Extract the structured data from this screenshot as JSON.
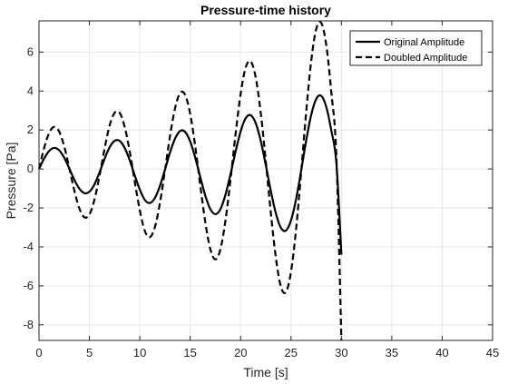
{
  "chart_data": {
    "type": "line",
    "title": "Pressure-time history",
    "xlabel": "Time [s]",
    "ylabel": "Pressure [Pa]",
    "xlim": [
      0,
      45
    ],
    "ylim": [
      -8.8,
      7.6
    ],
    "xticks": [
      0,
      5,
      10,
      15,
      20,
      25,
      30,
      35,
      40,
      45
    ],
    "yticks": [
      -8,
      -6,
      -4,
      -2,
      0,
      2,
      4,
      6
    ],
    "grid": true,
    "legend_position": "top-right",
    "series": [
      {
        "name": "Original Amplitude",
        "style": "solid",
        "color": "#000000",
        "x": [
          0,
          0.5,
          1,
          1.5,
          2,
          2.5,
          3,
          3.5,
          4,
          4.5,
          5,
          5.5,
          6,
          6.5,
          7,
          7.5,
          8,
          8.5,
          9,
          9.5,
          10,
          10.5,
          11,
          11.5,
          12,
          12.5,
          13,
          13.5,
          14,
          14.5,
          15,
          15.5,
          16,
          16.5,
          17,
          17.5,
          18,
          18.5,
          19,
          19.5,
          20,
          20.5,
          21,
          21.5,
          22,
          22.5,
          23,
          23.5,
          24,
          24.5,
          25,
          25.5,
          26,
          26.5,
          27,
          27.5,
          28,
          28.5,
          29,
          29.5,
          30
        ],
        "y": [
          0,
          0.53,
          0.92,
          1.08,
          0.96,
          0.58,
          0.03,
          -0.55,
          -1.01,
          -1.24,
          -1.17,
          -0.79,
          -0.18,
          0.51,
          1.11,
          1.44,
          1.44,
          1.08,
          0.45,
          -0.33,
          -1.06,
          -1.59,
          -1.75,
          -1.49,
          -0.87,
          -0.03,
          0.85,
          1.56,
          1.95,
          1.9,
          1.41,
          0.58,
          -0.42,
          -1.37,
          -2.06,
          -2.32,
          -2.06,
          -1.32,
          -0.27,
          0.89,
          1.92,
          2.6,
          2.76,
          2.35,
          1.44,
          0.2,
          -1.13,
          -2.28,
          -3.02,
          -3.16,
          -2.64,
          -1.56,
          -0.11,
          1.44,
          2.76,
          3.59,
          3.75,
          3.18,
          1.97,
          0.33,
          -4.4
        ]
      },
      {
        "name": "Doubled Amplitude",
        "style": "dashed",
        "color": "#000000",
        "x": [
          0,
          0.5,
          1,
          1.5,
          2,
          2.5,
          3,
          3.5,
          4,
          4.5,
          5,
          5.5,
          6,
          6.5,
          7,
          7.5,
          8,
          8.5,
          9,
          9.5,
          10,
          10.5,
          11,
          11.5,
          12,
          12.5,
          13,
          13.5,
          14,
          14.5,
          15,
          15.5,
          16,
          16.5,
          17,
          17.5,
          18,
          18.5,
          19,
          19.5,
          20,
          20.5,
          21,
          21.5,
          22,
          22.5,
          23,
          23.5,
          24,
          24.5,
          25,
          25.5,
          26,
          26.5,
          27,
          27.5,
          28,
          28.5,
          29,
          29.5,
          30
        ],
        "y": [
          0,
          1.06,
          1.84,
          2.16,
          1.92,
          1.16,
          0.06,
          -1.1,
          -2.02,
          -2.48,
          -2.34,
          -1.58,
          -0.36,
          1.02,
          2.22,
          2.88,
          2.88,
          2.16,
          0.9,
          -0.66,
          -2.12,
          -3.18,
          -3.5,
          -2.98,
          -1.74,
          -0.06,
          1.7,
          3.12,
          3.9,
          3.8,
          2.82,
          1.16,
          -0.84,
          -2.74,
          -4.12,
          -4.64,
          -4.12,
          -2.64,
          -0.54,
          1.78,
          3.84,
          5.2,
          5.52,
          4.7,
          2.88,
          0.4,
          -2.26,
          -4.56,
          -6.04,
          -6.32,
          -5.28,
          -3.12,
          -0.22,
          2.88,
          5.52,
          7.18,
          7.5,
          6.36,
          3.94,
          0.66,
          -8.8
        ]
      }
    ]
  }
}
